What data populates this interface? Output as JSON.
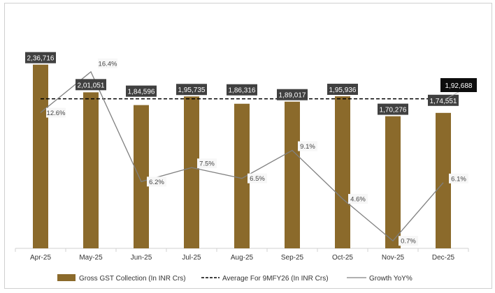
{
  "chart_data": {
    "type": "bar",
    "title": "",
    "xlabel": "",
    "ylabel": "",
    "categories": [
      "Apr-25",
      "May-25",
      "Jun-25",
      "Jul-25",
      "Aug-25",
      "Sep-25",
      "Oct-25",
      "Nov-25",
      "Dec-25"
    ],
    "series": [
      {
        "name": "Gross GST Collection (In INR Crs)",
        "type": "bar",
        "color": "#8B6A2B",
        "values": [
          236716,
          201051,
          184596,
          195735,
          186316,
          189017,
          195936,
          170276,
          174551
        ],
        "labels": [
          "2,36,716",
          "2,01,051",
          "1,84,596",
          "1,95,735",
          "1,86,316",
          "1,89,017",
          "1,95,936",
          "1,70,276",
          "1,74,551"
        ]
      },
      {
        "name": "Average For 9MFY26 (In INR Crs)",
        "type": "line-dashed",
        "color": "#000000",
        "value": 192688,
        "label": "1,92,688"
      },
      {
        "name": "Growth YoY%",
        "type": "line",
        "axis": "secondary",
        "color": "#808080",
        "values": [
          12.6,
          16.4,
          6.2,
          7.5,
          6.5,
          9.1,
          4.6,
          0.7,
          6.1
        ],
        "labels": [
          "12.6%",
          "16.4%",
          "6.2%",
          "7.5%",
          "6.5%",
          "9.1%",
          "4.6%",
          "0.7%",
          "6.1%"
        ]
      }
    ],
    "ylim": [
      0,
      240000
    ],
    "y2lim": [
      0,
      17.3
    ],
    "grid": false,
    "legend": "bottom"
  }
}
